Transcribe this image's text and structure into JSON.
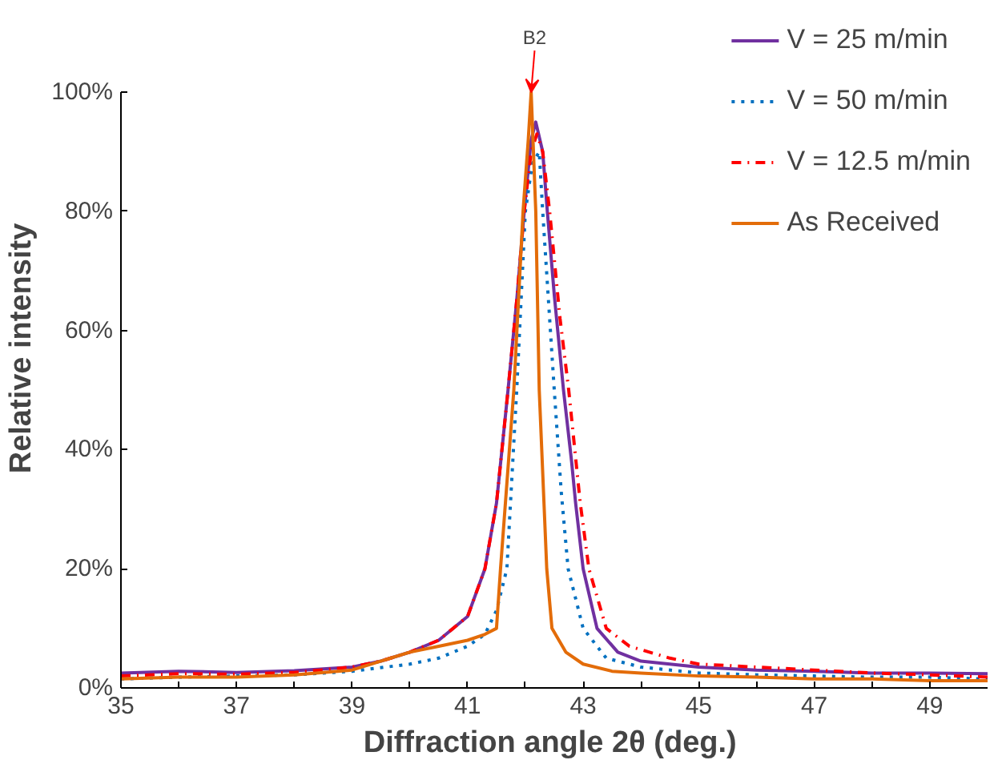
{
  "chart_data": {
    "type": "line",
    "xlabel": "Diffraction angle 2θ  (deg.)",
    "ylabel": "Relative intensity",
    "xlim": [
      35,
      50
    ],
    "ylim": [
      0,
      100
    ],
    "xticks": [
      35,
      {
        "value": 36,
        "label": null
      },
      37,
      {
        "value": 38,
        "label": null
      },
      39,
      {
        "value": 40,
        "label": null
      },
      41,
      {
        "value": 42,
        "label": null
      },
      43,
      {
        "value": 44,
        "label": null
      },
      45,
      {
        "value": 46,
        "label": null
      },
      47,
      {
        "value": 48,
        "label": null
      },
      49
    ],
    "yticks": [
      {
        "value": 0,
        "label": "0%"
      },
      {
        "value": 20,
        "label": "20%"
      },
      {
        "value": 40,
        "label": "40%"
      },
      {
        "value": 60,
        "label": "60%"
      },
      {
        "value": 80,
        "label": "80%"
      },
      {
        "value": 100,
        "label": "100%"
      }
    ],
    "grid": false,
    "legend": "top right",
    "marker": "none",
    "annotations": [
      {
        "text": "B2",
        "x": 42.1,
        "y": 100
      }
    ],
    "series": [
      {
        "name": "V = 25 m/min",
        "color": "#7030a0",
        "line_style": "solid",
        "x": [
          35,
          36,
          37,
          38,
          39,
          39.5,
          40,
          40.5,
          41,
          41.3,
          41.5,
          41.7,
          41.85,
          41.98,
          42.1,
          42.18,
          42.3,
          42.38,
          42.5,
          42.66,
          42.8,
          42.87,
          43.0,
          43.24,
          43.6,
          44,
          44.5,
          45,
          46,
          47,
          48,
          49,
          50
        ],
        "values": [
          2.5,
          2.8,
          2.6,
          2.9,
          3.5,
          4.5,
          6,
          8,
          12,
          20,
          31,
          50,
          65,
          80,
          92,
          95,
          90,
          80,
          66,
          50,
          38,
          31,
          20,
          10,
          6,
          4.5,
          4,
          3.5,
          3,
          2.8,
          2.5,
          2.5,
          2.4
        ]
      },
      {
        "name": "V = 50 m/min",
        "color": "#0070c0",
        "line_style": "dotted",
        "x": [
          35,
          36,
          37,
          38,
          39,
          40,
          40.5,
          41,
          41.3,
          41.5,
          41.68,
          41.85,
          42.0,
          42.12,
          42.24,
          42.3,
          42.4,
          42.5,
          42.62,
          42.74,
          43.0,
          43.4,
          44,
          45,
          46,
          47,
          48,
          49,
          50
        ],
        "values": [
          1.5,
          1.8,
          2,
          2.2,
          2.8,
          4,
          5,
          7,
          9,
          13,
          20,
          50,
          80,
          88,
          90,
          80,
          65,
          50,
          33,
          20,
          10,
          5,
          3.5,
          2.5,
          2.2,
          2,
          1.8,
          1.8,
          1.5
        ]
      },
      {
        "name": "V = 12.5 m/min",
        "color": "#ff0000",
        "line_style": "dashdot",
        "x": [
          35,
          36,
          37,
          38,
          39,
          39.5,
          40,
          40.5,
          41,
          41.3,
          41.5,
          41.7,
          41.85,
          41.98,
          42.1,
          42.2,
          42.3,
          42.42,
          42.6,
          42.75,
          42.95,
          43.1,
          43.4,
          43.8,
          44.5,
          45,
          46,
          47,
          48,
          49,
          50
        ],
        "values": [
          2,
          2.4,
          2.3,
          2.6,
          3.5,
          4.5,
          6,
          8,
          12,
          20,
          31,
          50,
          65,
          80,
          90,
          93,
          90,
          80,
          62,
          50,
          31,
          20,
          10,
          7,
          5,
          4,
          3.5,
          3,
          2.5,
          2.2,
          1.8
        ]
      },
      {
        "name": "As Received",
        "color": "#e36c09",
        "line_style": "solid",
        "x": [
          35,
          36,
          37,
          38,
          39,
          40,
          40.5,
          41,
          41.3,
          41.5,
          41.57,
          41.8,
          41.96,
          42.05,
          42.1,
          42.18,
          42.24,
          42.37,
          42.46,
          42.7,
          43,
          43.5,
          44,
          45,
          46,
          47,
          48,
          49,
          50
        ],
        "values": [
          1.5,
          1.8,
          1.8,
          2.2,
          3,
          6,
          7,
          8,
          9,
          10,
          20,
          50,
          80,
          92,
          100,
          80,
          50,
          20,
          10,
          6,
          4,
          2.8,
          2.5,
          2,
          1.8,
          1.5,
          1.5,
          1.2,
          1.2
        ]
      }
    ]
  }
}
